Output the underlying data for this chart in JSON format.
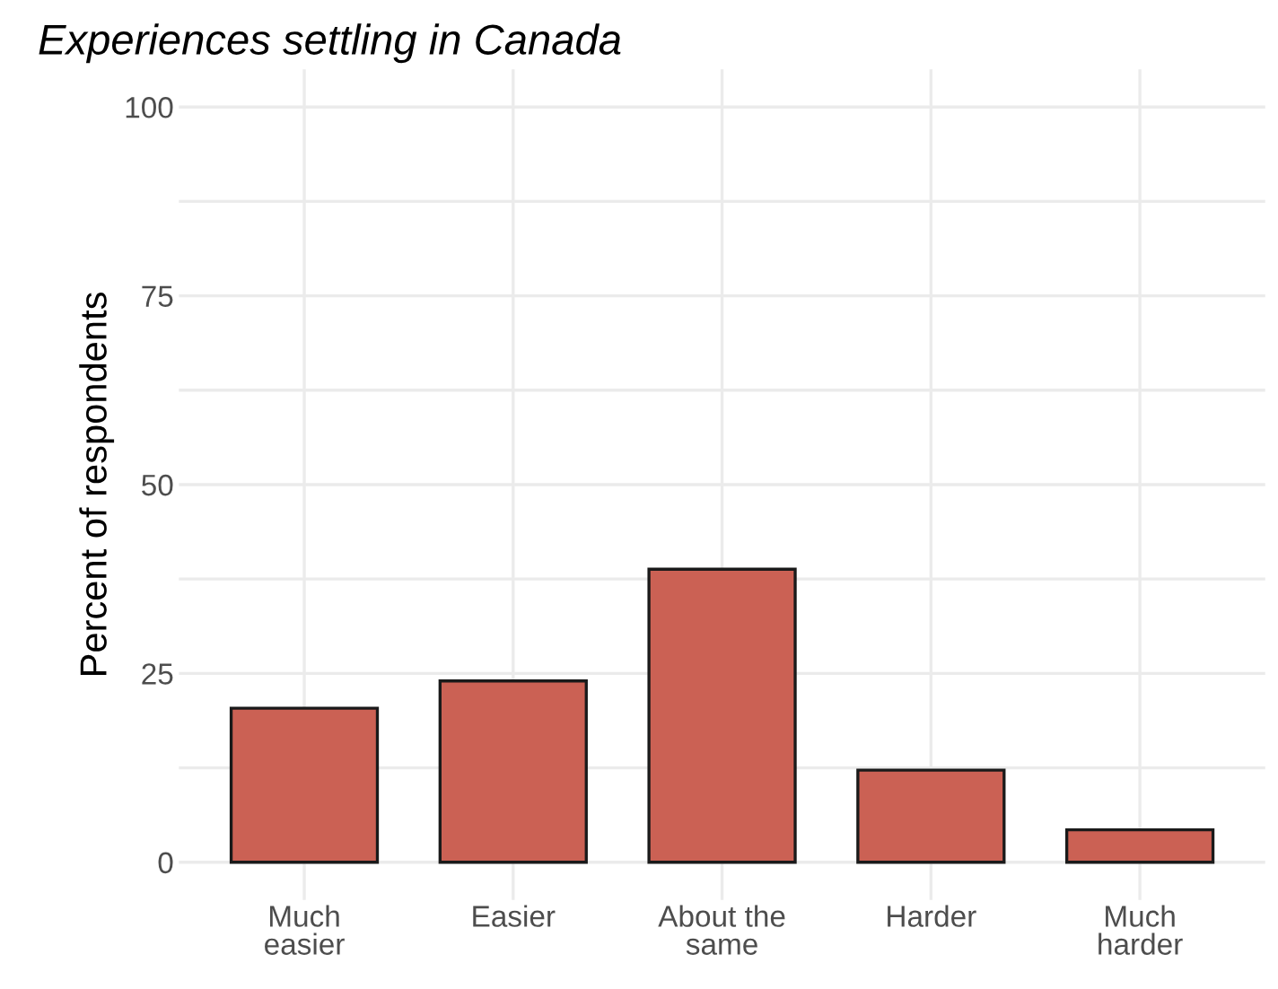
{
  "chart_data": {
    "type": "bar",
    "title": "Experiences settling in Canada",
    "ylabel": "Percent of respondents",
    "categories": [
      "Much\neasier",
      "Easier",
      "About the\nsame",
      "Harder",
      "Much\nharder"
    ],
    "values": [
      20.4,
      24.0,
      38.8,
      12.2,
      4.3
    ],
    "color": "#cb6154",
    "ylim": [
      -5,
      105
    ],
    "yticks": [
      0,
      {
        "value": 12.5,
        "label": null
      },
      25,
      {
        "value": 37.5,
        "label": null
      },
      50,
      {
        "value": 62.5,
        "label": null
      },
      75,
      {
        "value": 87.5,
        "label": null
      },
      100
    ],
    "grid": true
  }
}
